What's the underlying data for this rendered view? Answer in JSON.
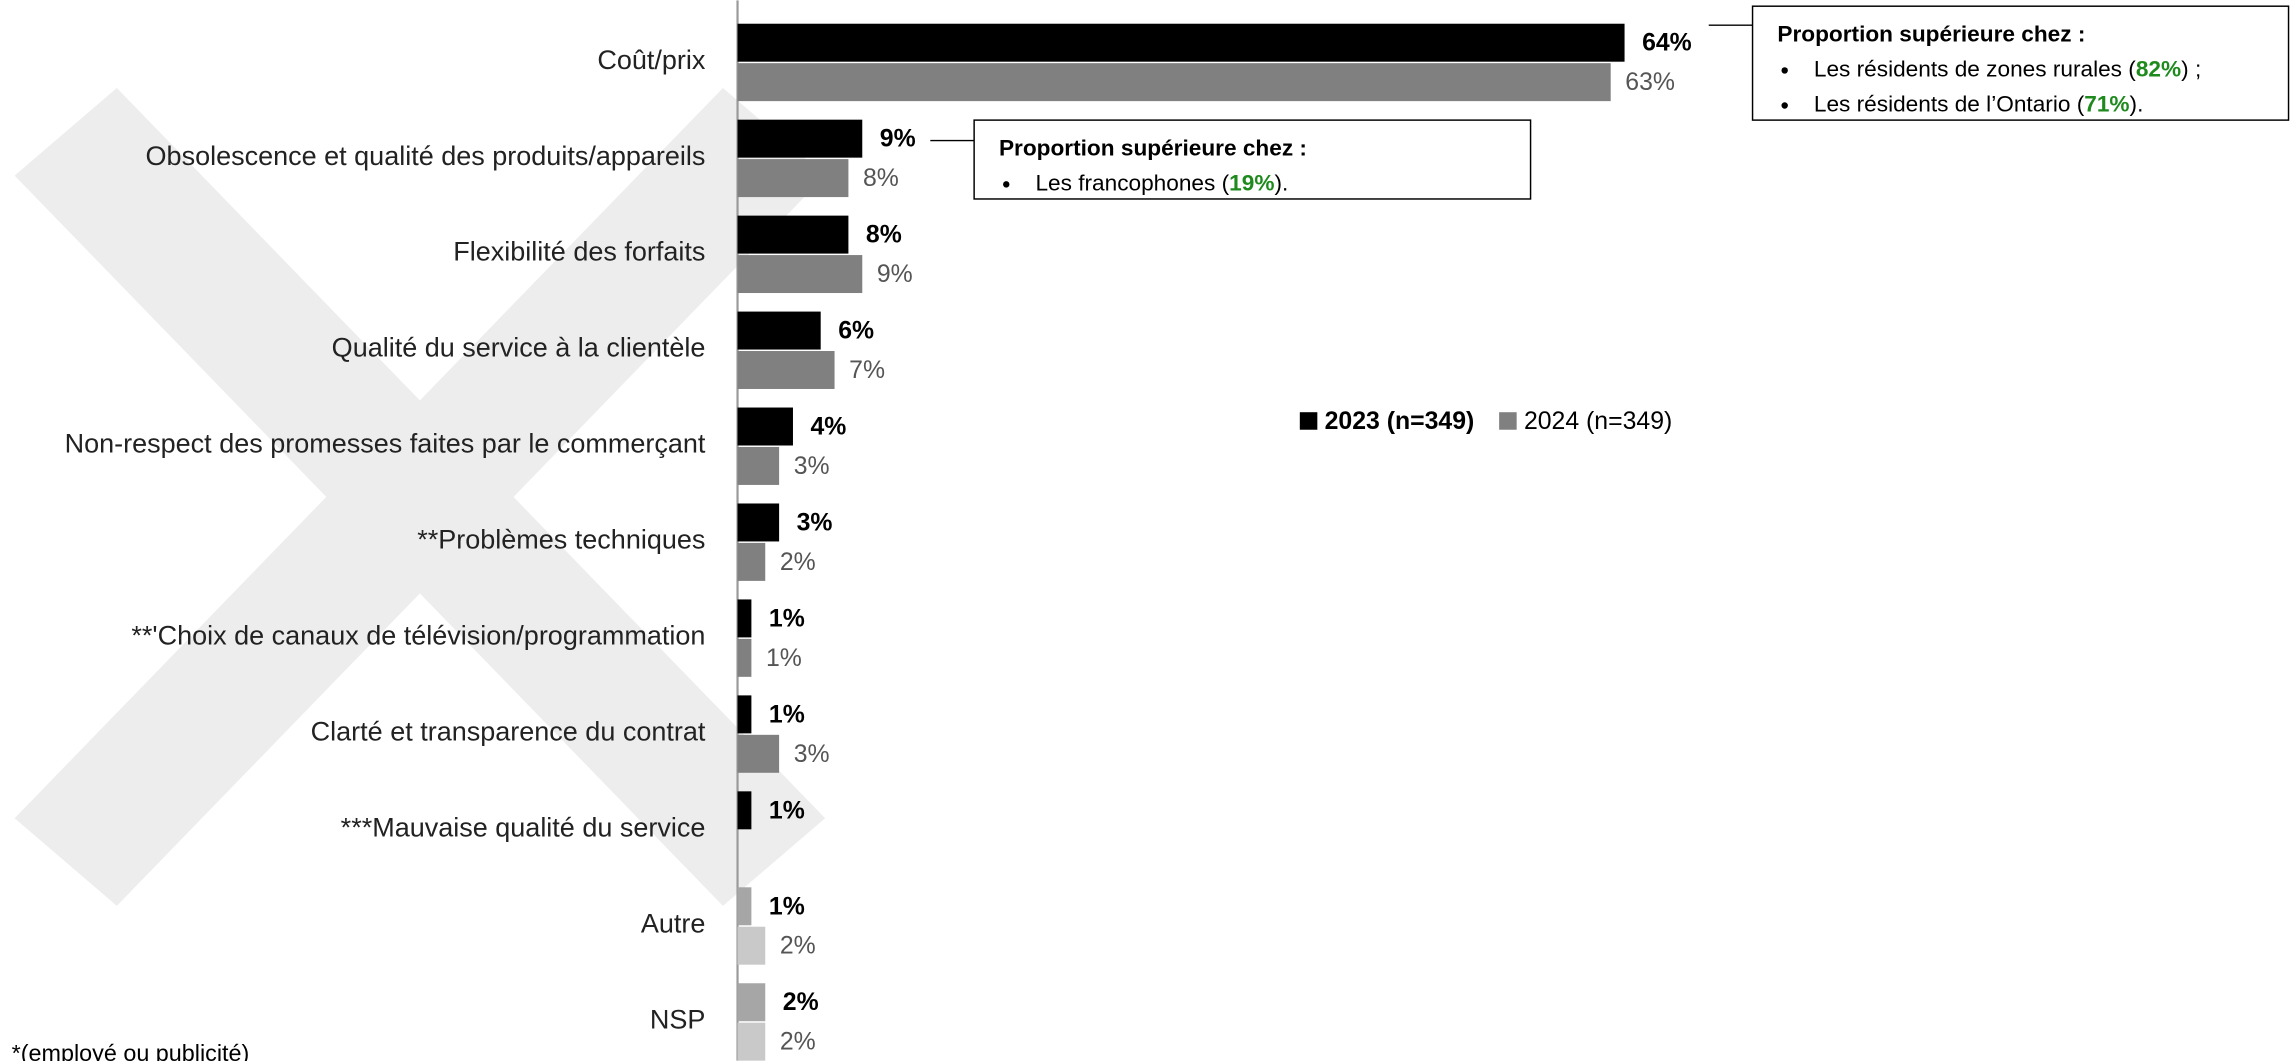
{
  "chart_data": {
    "type": "hbar",
    "categories": [
      "Coût/prix",
      "Obsolescence et qualité des produits/appareils",
      "Flexibilité des forfaits",
      "Qualité du service à la clientèle",
      "Non-respect des promesses faites par le commerçant",
      "**Problèmes techniques",
      "**'Choix de canaux de télévision/programmation",
      "Clarté et transparence du contrat",
      "***Mauvaise qualité du service",
      "Autre",
      "NSP"
    ],
    "series": [
      {
        "name": "2023 (n=349)",
        "color": "#000000",
        "colors": [
          "#000000",
          "#000000",
          "#000000",
          "#000000",
          "#000000",
          "#000000",
          "#000000",
          "#000000",
          "#000000",
          "#a6a6a6",
          "#a6a6a6"
        ],
        "values": [
          64,
          9,
          8,
          6,
          4,
          3,
          1,
          1,
          1,
          1,
          2
        ],
        "value_labels": [
          "64%",
          "9%",
          "8%",
          "6%",
          "4%",
          "3%",
          "1%",
          "1%",
          "1%",
          "1%",
          "2%"
        ]
      },
      {
        "name": "2024 (n=349)",
        "color": "#808080",
        "colors": [
          "#808080",
          "#808080",
          "#808080",
          "#808080",
          "#808080",
          "#808080",
          "#808080",
          "#808080",
          "#808080",
          "#c9c9c9",
          "#c9c9c9"
        ],
        "values": [
          63,
          8,
          9,
          7,
          3,
          2,
          1,
          3,
          null,
          2,
          2
        ],
        "value_labels": [
          "63%",
          "8%",
          "9%",
          "7%",
          "3%",
          "2%",
          "1%",
          "3%",
          null,
          "2%",
          "2%"
        ]
      }
    ],
    "annotations": [
      {
        "category_index": 0,
        "title": "Proportion supérieure chez :",
        "highlight_color": "#1e8a1e",
        "bullets": [
          {
            "before": "Les résidents de zones rurales (",
            "highlight": "82%",
            "after": ") ;"
          },
          {
            "before": "Les résidents de l’Ontario (",
            "highlight": "71%",
            "after": ")."
          }
        ]
      },
      {
        "category_index": 1,
        "title": "Proportion supérieure chez :",
        "highlight_color": "#1e8a1e",
        "bullets": [
          {
            "before": "Les francophones (",
            "highlight": "19%",
            "after": ")."
          }
        ]
      }
    ],
    "footnote": "*(employé ou publicité)"
  }
}
